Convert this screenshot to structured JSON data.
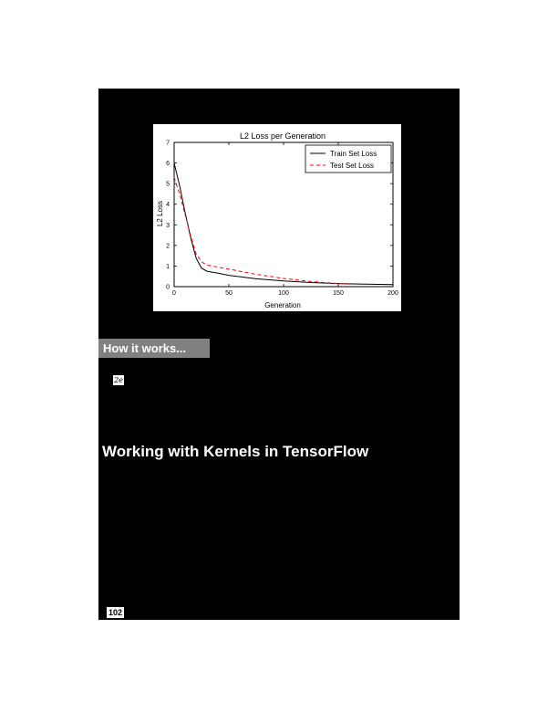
{
  "chart_data": {
    "type": "line",
    "title": "L2 Loss per Generation",
    "xlabel": "Generation",
    "ylabel": "L2 Loss",
    "xlim": [
      0,
      200
    ],
    "ylim": [
      0,
      7
    ],
    "xticks": [
      0,
      50,
      100,
      150,
      200
    ],
    "yticks": [
      0,
      1,
      2,
      3,
      4,
      5,
      6,
      7
    ],
    "grid": false,
    "legend": "top-right",
    "series": [
      {
        "name": "Train Set Loss",
        "color": "#000000",
        "style": "solid",
        "x": [
          0,
          5,
          10,
          15,
          20,
          25,
          30,
          40,
          50,
          75,
          100,
          125,
          150,
          175,
          200
        ],
        "y": [
          6.0,
          4.9,
          3.6,
          2.4,
          1.4,
          0.9,
          0.75,
          0.65,
          0.55,
          0.38,
          0.28,
          0.2,
          0.15,
          0.12,
          0.1
        ]
      },
      {
        "name": "Test Set Loss",
        "color": "#ff0000",
        "style": "dashed",
        "x": [
          0,
          5,
          10,
          15,
          20,
          25,
          30,
          40,
          50,
          75,
          100,
          125,
          150,
          160
        ],
        "y": [
          5.3,
          4.5,
          3.5,
          2.5,
          1.6,
          1.2,
          1.05,
          0.95,
          0.85,
          0.6,
          0.4,
          0.25,
          0.15,
          0.12
        ]
      }
    ]
  },
  "section": {
    "heading": "How it works..."
  },
  "math_token": "2e",
  "recipe_title": "Working with Kernels in TensorFlow",
  "page_number": "102"
}
